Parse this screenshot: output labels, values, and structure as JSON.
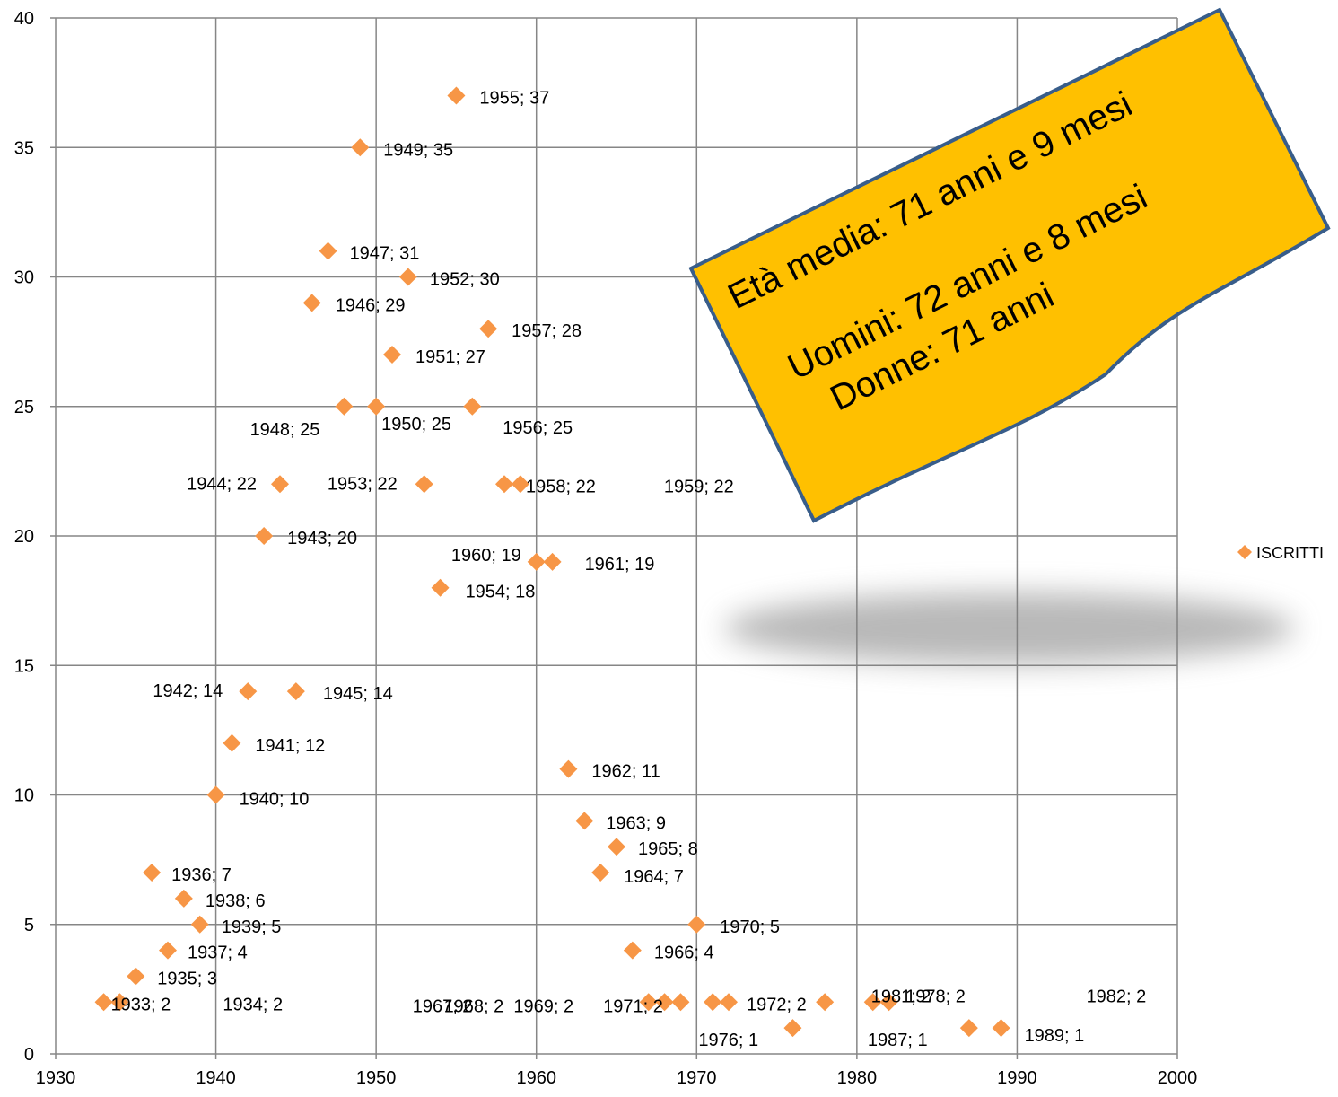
{
  "chart_data": {
    "type": "scatter",
    "title": "",
    "xlabel": "",
    "ylabel": "",
    "xlim": [
      1930,
      2000
    ],
    "ylim": [
      0,
      40
    ],
    "x_ticks": [
      1930,
      1940,
      1950,
      1960,
      1970,
      1980,
      1990,
      2000
    ],
    "y_ticks": [
      0,
      5,
      10,
      15,
      20,
      25,
      30,
      35,
      40
    ],
    "grid": true,
    "legend_position": "right",
    "series": [
      {
        "name": "ISCRITTI",
        "color": "#F79646",
        "marker": "diamond",
        "points": [
          {
            "x": 1933,
            "y": 2,
            "label": "1933; 2"
          },
          {
            "x": 1934,
            "y": 2,
            "label": "1934; 2"
          },
          {
            "x": 1935,
            "y": 3,
            "label": "1935; 3"
          },
          {
            "x": 1936,
            "y": 7,
            "label": "1936; 7"
          },
          {
            "x": 1937,
            "y": 4,
            "label": "1937; 4"
          },
          {
            "x": 1938,
            "y": 6,
            "label": "1938; 6"
          },
          {
            "x": 1939,
            "y": 5,
            "label": "1939; 5"
          },
          {
            "x": 1940,
            "y": 10,
            "label": "1940; 10"
          },
          {
            "x": 1941,
            "y": 12,
            "label": "1941; 12"
          },
          {
            "x": 1942,
            "y": 14,
            "label": "1942; 14"
          },
          {
            "x": 1943,
            "y": 20,
            "label": "1943; 20"
          },
          {
            "x": 1944,
            "y": 22,
            "label": "1944; 22"
          },
          {
            "x": 1945,
            "y": 14,
            "label": "1945; 14"
          },
          {
            "x": 1946,
            "y": 29,
            "label": "1946; 29"
          },
          {
            "x": 1947,
            "y": 31,
            "label": "1947; 31"
          },
          {
            "x": 1948,
            "y": 25,
            "label": "1948; 25"
          },
          {
            "x": 1949,
            "y": 35,
            "label": "1949; 35"
          },
          {
            "x": 1950,
            "y": 25,
            "label": "1950; 25"
          },
          {
            "x": 1951,
            "y": 27,
            "label": "1951; 27"
          },
          {
            "x": 1952,
            "y": 30,
            "label": "1952; 30"
          },
          {
            "x": 1953,
            "y": 22,
            "label": "1953; 22"
          },
          {
            "x": 1954,
            "y": 18,
            "label": "1954; 18"
          },
          {
            "x": 1955,
            "y": 37,
            "label": "1955; 37"
          },
          {
            "x": 1956,
            "y": 25,
            "label": "1956; 25"
          },
          {
            "x": 1957,
            "y": 28,
            "label": "1957; 28"
          },
          {
            "x": 1958,
            "y": 22,
            "label": "1958; 22"
          },
          {
            "x": 1959,
            "y": 22,
            "label": "1959; 22"
          },
          {
            "x": 1960,
            "y": 19,
            "label": "1960; 19"
          },
          {
            "x": 1961,
            "y": 19,
            "label": "1961; 19"
          },
          {
            "x": 1962,
            "y": 11,
            "label": "1962; 11"
          },
          {
            "x": 1963,
            "y": 9,
            "label": "1963; 9"
          },
          {
            "x": 1964,
            "y": 7,
            "label": "1964; 7"
          },
          {
            "x": 1965,
            "y": 8,
            "label": "1965; 8"
          },
          {
            "x": 1966,
            "y": 4,
            "label": "1966; 4"
          },
          {
            "x": 1967,
            "y": 2,
            "label": "1967; 2"
          },
          {
            "x": 1968,
            "y": 2,
            "label": "1968; 2"
          },
          {
            "x": 1969,
            "y": 2,
            "label": "1969; 2"
          },
          {
            "x": 1970,
            "y": 5,
            "label": "1970; 5"
          },
          {
            "x": 1971,
            "y": 2,
            "label": "1971; 2"
          },
          {
            "x": 1972,
            "y": 2,
            "label": "1972; 2"
          },
          {
            "x": 1976,
            "y": 1,
            "label": "1976; 1"
          },
          {
            "x": 1978,
            "y": 2,
            "label": "1978; 2"
          },
          {
            "x": 1981,
            "y": 2,
            "label": "1981; 2"
          },
          {
            "x": 1982,
            "y": 2,
            "label": "1982; 2"
          },
          {
            "x": 1987,
            "y": 1,
            "label": "1987; 1"
          },
          {
            "x": 1989,
            "y": 1,
            "label": "1989; 1"
          }
        ]
      }
    ],
    "annotation": {
      "line1": "Età media: 71 anni e 9 mesi",
      "line2": "Uomini: 72 anni e 8 mesi",
      "line3": "Donne:  71 anni",
      "fill_color": "#FFC000",
      "border_color": "#385D8A"
    }
  }
}
